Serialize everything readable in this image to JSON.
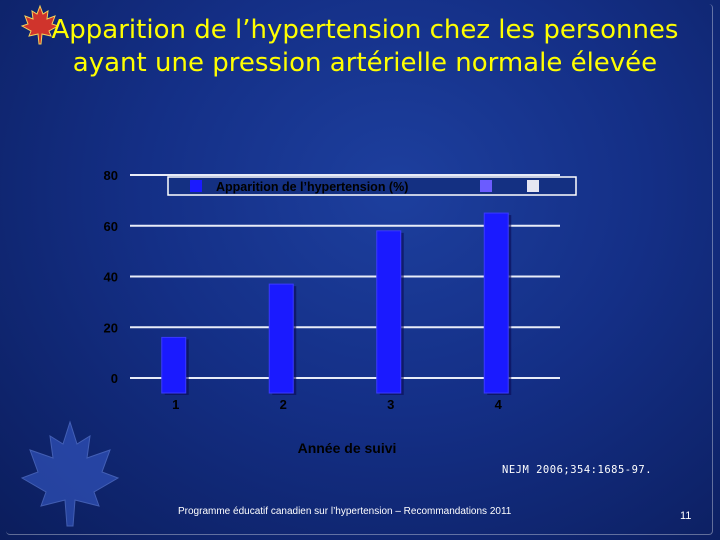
{
  "slide": {
    "title": "Apparition de l’hypertension chez les personnes ayant une pression artérielle normale élevée",
    "citation": "NEJM 2006;354:1685-97.",
    "footer": "Programme éducatif canadien sur l’hypertension – Recommandations 2011",
    "page_number": "11",
    "colors": {
      "background": "#142f86",
      "title": "#ffff00",
      "bar": "#1a1aff",
      "legend_swatch_2": "#6b5cff",
      "legend_swatch_3": "#e6e6f2"
    },
    "icons": [
      "maple-leaf-logo-icon",
      "maple-leaf-watermark-icon"
    ]
  },
  "chart_data": {
    "type": "bar",
    "categories": [
      "1",
      "2",
      "3",
      "4"
    ],
    "series": [
      {
        "name": "Apparition de l’hypertension (%)",
        "values": [
          16,
          37,
          58,
          65
        ]
      }
    ],
    "yticks": [
      "0",
      "20",
      "40",
      "60",
      "80"
    ],
    "ylim": [
      0,
      80
    ],
    "xlabel": "Année de suivi",
    "ylabel": "",
    "grid": true,
    "legend": "top"
  }
}
